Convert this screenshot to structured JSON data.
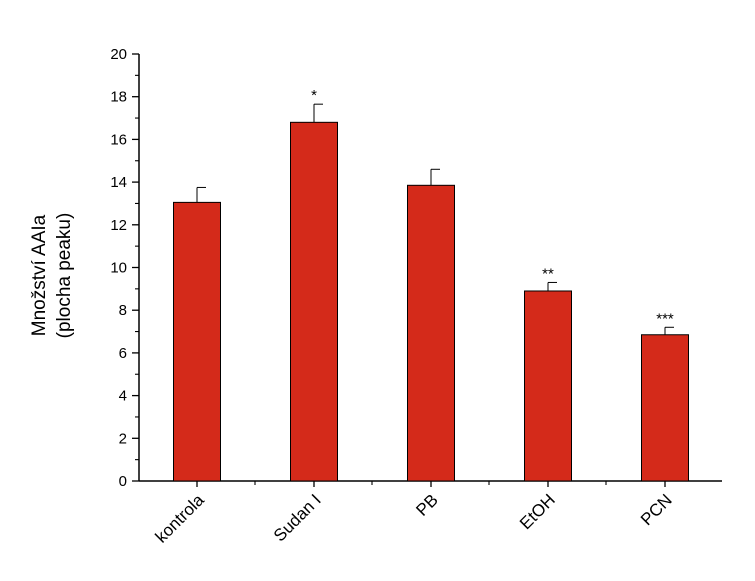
{
  "chart_data": {
    "type": "bar",
    "title": "",
    "xlabel": "",
    "ylabel": [
      "Množství AAIa",
      "(plocha peaku)"
    ],
    "ylim": [
      0,
      20
    ],
    "yticks": [
      0,
      2,
      4,
      6,
      8,
      10,
      12,
      14,
      16,
      18,
      20
    ],
    "grid": false,
    "legend": "none",
    "categories": [
      "kontrola",
      "Sudan I",
      "PB",
      "EtOH",
      "PCN"
    ],
    "values": [
      13.05,
      16.8,
      13.85,
      8.9,
      6.85
    ],
    "errors": [
      0.7,
      0.85,
      0.75,
      0.4,
      0.35
    ],
    "significance": [
      "",
      "*",
      "",
      "**",
      "***"
    ],
    "bar_color": "#d42a1a",
    "bar_edge_color": "#000000"
  }
}
